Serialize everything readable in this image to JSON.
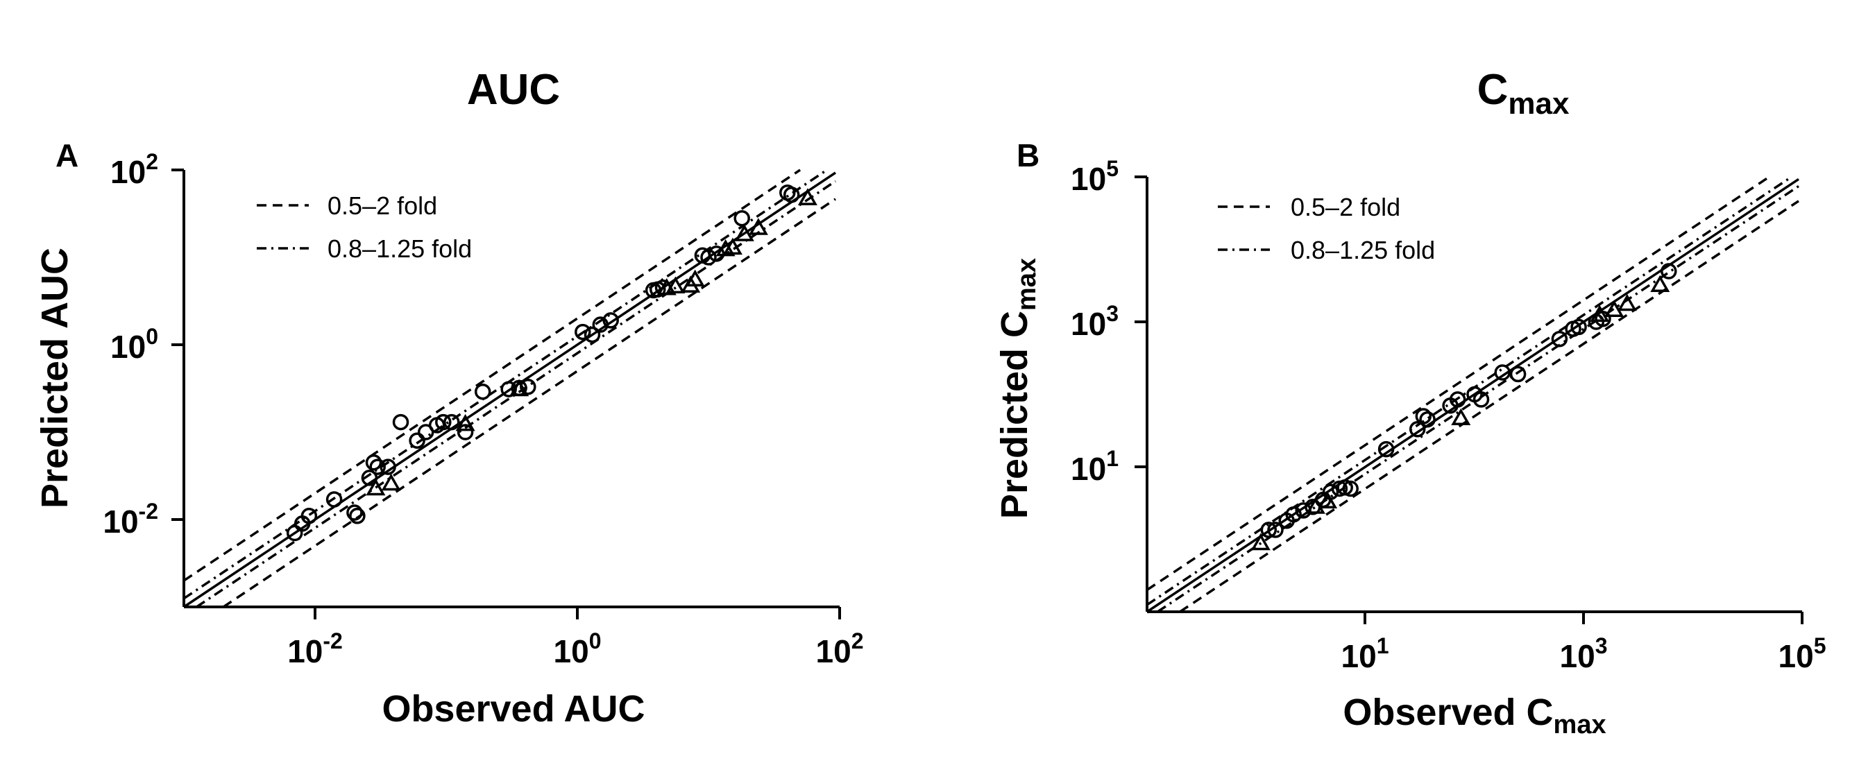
{
  "figure": {
    "legend": {
      "items": [
        {
          "label": "0.5–2 fold",
          "style": "dashed"
        },
        {
          "label": "0.8–1.25 fold",
          "style": "dashdot"
        }
      ]
    }
  },
  "chart_data": [
    {
      "type": "scatter",
      "panel_letter": "A",
      "title": "AUC",
      "title_sub": "",
      "xlabel": "Observed AUC",
      "xlabel_sub": "",
      "ylabel": "Predicted AUC",
      "ylabel_sub": "",
      "scale": "log10",
      "xlim": [
        0.001,
        100
      ],
      "ylim": [
        0.001,
        100
      ],
      "xticks": [
        {
          "base": "10",
          "exp": "-2"
        },
        {
          "base": "10",
          "exp": "0"
        },
        {
          "base": "10",
          "exp": "2"
        }
      ],
      "yticks": [
        {
          "base": "10",
          "exp": "-2"
        },
        {
          "base": "10",
          "exp": "0"
        },
        {
          "base": "10",
          "exp": "2"
        }
      ],
      "xtick_values": [
        0.01,
        1,
        100
      ],
      "ytick_values": [
        0.01,
        1,
        100
      ],
      "reference_lines": [
        {
          "type": "identity",
          "style": "solid",
          "factor": 1
        },
        {
          "type": "fold",
          "style": "dashed",
          "factor": 2
        },
        {
          "type": "fold",
          "style": "dashed",
          "factor": 0.5
        },
        {
          "type": "fold",
          "style": "dashdot",
          "factor": 1.25
        },
        {
          "type": "fold",
          "style": "dashdot",
          "factor": 0.8
        }
      ],
      "series": [
        {
          "marker": "circle",
          "points": [
            [
              0.007,
              0.007
            ],
            [
              0.008,
              0.009
            ],
            [
              0.009,
              0.011
            ],
            [
              0.014,
              0.017
            ],
            [
              0.02,
              0.012
            ],
            [
              0.021,
              0.011
            ],
            [
              0.026,
              0.03
            ],
            [
              0.028,
              0.045
            ],
            [
              0.03,
              0.04
            ],
            [
              0.036,
              0.04
            ],
            [
              0.045,
              0.13
            ],
            [
              0.06,
              0.08
            ],
            [
              0.07,
              0.1
            ],
            [
              0.085,
              0.12
            ],
            [
              0.095,
              0.13
            ],
            [
              0.11,
              0.13
            ],
            [
              0.14,
              0.1
            ],
            [
              0.19,
              0.29
            ],
            [
              0.3,
              0.31
            ],
            [
              0.36,
              0.32
            ],
            [
              0.42,
              0.33
            ],
            [
              1.1,
              1.4
            ],
            [
              1.3,
              1.3
            ],
            [
              1.5,
              1.7
            ],
            [
              1.8,
              1.9
            ],
            [
              3.8,
              4.2
            ],
            [
              4.1,
              4.3
            ],
            [
              4.5,
              4.5
            ],
            [
              9,
              10.5
            ],
            [
              10,
              10
            ],
            [
              11.5,
              11
            ],
            [
              18,
              28
            ],
            [
              40,
              55
            ],
            [
              43,
              52
            ]
          ]
        },
        {
          "marker": "triangle",
          "points": [
            [
              0.029,
              0.022
            ],
            [
              0.038,
              0.025
            ],
            [
              0.14,
              0.12
            ],
            [
              0.36,
              0.3
            ],
            [
              4.8,
              4.3
            ],
            [
              5.6,
              4.5
            ],
            [
              7.3,
              4.6
            ],
            [
              7.9,
              5.4
            ],
            [
              13.5,
              12
            ],
            [
              15.3,
              12.5
            ],
            [
              18.8,
              17.8
            ],
            [
              24,
              21
            ],
            [
              57,
              46
            ]
          ]
        }
      ]
    },
    {
      "type": "scatter",
      "panel_letter": "B",
      "title": "C",
      "title_sub": "max",
      "xlabel": "Observed C",
      "xlabel_sub": "max",
      "ylabel": "Predicted C",
      "ylabel_sub": "max",
      "scale": "log10",
      "xlim": [
        0.1,
        100000
      ],
      "ylim": [
        0.1,
        100000
      ],
      "xticks": [
        {
          "base": "10",
          "exp": "1"
        },
        {
          "base": "10",
          "exp": "3"
        },
        {
          "base": "10",
          "exp": "5"
        }
      ],
      "yticks": [
        {
          "base": "10",
          "exp": "1"
        },
        {
          "base": "10",
          "exp": "3"
        },
        {
          "base": "10",
          "exp": "5"
        }
      ],
      "xtick_values": [
        10,
        1000,
        100000
      ],
      "ytick_values": [
        10,
        1000,
        100000
      ],
      "reference_lines": [
        {
          "type": "identity",
          "style": "solid",
          "factor": 1
        },
        {
          "type": "fold",
          "style": "dashed",
          "factor": 2
        },
        {
          "type": "fold",
          "style": "dashed",
          "factor": 0.5
        },
        {
          "type": "fold",
          "style": "dashdot",
          "factor": 1.25
        },
        {
          "type": "fold",
          "style": "dashdot",
          "factor": 0.8
        }
      ],
      "series": [
        {
          "marker": "circle",
          "points": [
            [
              1.3,
              1.35
            ],
            [
              1.5,
              1.35
            ],
            [
              1.9,
              1.8
            ],
            [
              2.2,
              2.2
            ],
            [
              2.7,
              2.5
            ],
            [
              3.3,
              2.8
            ],
            [
              4.1,
              3.5
            ],
            [
              4.8,
              4.5
            ],
            [
              5.8,
              5
            ],
            [
              6.5,
              5.2
            ],
            [
              7.3,
              5
            ],
            [
              15.5,
              17.5
            ],
            [
              30,
              33
            ],
            [
              34,
              50
            ],
            [
              37,
              45
            ],
            [
              60,
              70
            ],
            [
              70,
              85
            ],
            [
              100,
              100
            ],
            [
              115,
              85
            ],
            [
              180,
              200
            ],
            [
              250,
              190
            ],
            [
              600,
              580
            ],
            [
              800,
              800
            ],
            [
              900,
              850
            ],
            [
              1300,
              1000
            ],
            [
              1500,
              1100
            ],
            [
              6000,
              5000
            ]
          ]
        },
        {
          "marker": "triangle",
          "points": [
            [
              1.1,
              0.85
            ],
            [
              3.5,
              2.7
            ],
            [
              4.5,
              3.2
            ],
            [
              75,
              45
            ],
            [
              1400,
              1200
            ],
            [
              1900,
              1400
            ],
            [
              2500,
              1700
            ],
            [
              5000,
              3100
            ]
          ]
        }
      ]
    }
  ]
}
